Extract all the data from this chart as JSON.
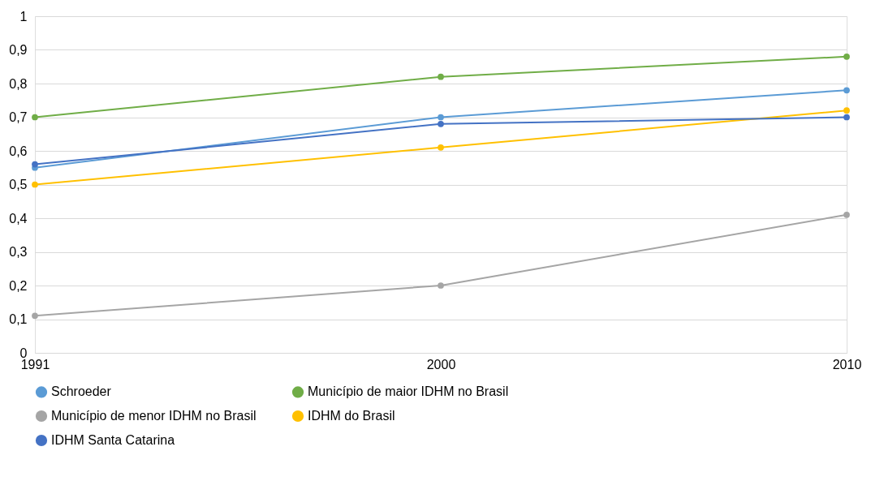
{
  "chart_data": {
    "type": "line",
    "categories": [
      "1991",
      "2000",
      "2010"
    ],
    "series": [
      {
        "name": "Schroeder",
        "color": "#5b9bd5",
        "values": [
          0.55,
          0.7,
          0.78
        ]
      },
      {
        "name": "Município de maior IDHM no Brasil",
        "color": "#70ad47",
        "values": [
          0.7,
          0.82,
          0.88
        ]
      },
      {
        "name": "Município de menor IDHM no Brasil",
        "color": "#a5a5a5",
        "values": [
          0.11,
          0.2,
          0.41
        ]
      },
      {
        "name": "IDHM do Brasil",
        "color": "#ffc000",
        "values": [
          0.5,
          0.61,
          0.72
        ]
      },
      {
        "name": "IDHM Santa Catarina",
        "color": "#4472c4",
        "values": [
          0.56,
          0.68,
          0.7
        ]
      }
    ],
    "ylim": [
      0,
      1
    ],
    "yticks": [
      0,
      {
        "value": 0.1,
        "label": "0,1"
      },
      {
        "value": 0.2,
        "label": "0,2"
      },
      {
        "value": 0.3,
        "label": "0,3"
      },
      {
        "value": 0.4,
        "label": "0,4"
      },
      {
        "value": 0.5,
        "label": "0,5"
      },
      {
        "value": 0.6,
        "label": "0,6"
      },
      {
        "value": 0.7,
        "label": "0,7"
      },
      {
        "value": 0.8,
        "label": "0,8"
      },
      {
        "value": 0.9,
        "label": "0,9"
      },
      1
    ],
    "grid": "y",
    "legend": "bottom",
    "marker": "circle",
    "line_style": "solid"
  }
}
